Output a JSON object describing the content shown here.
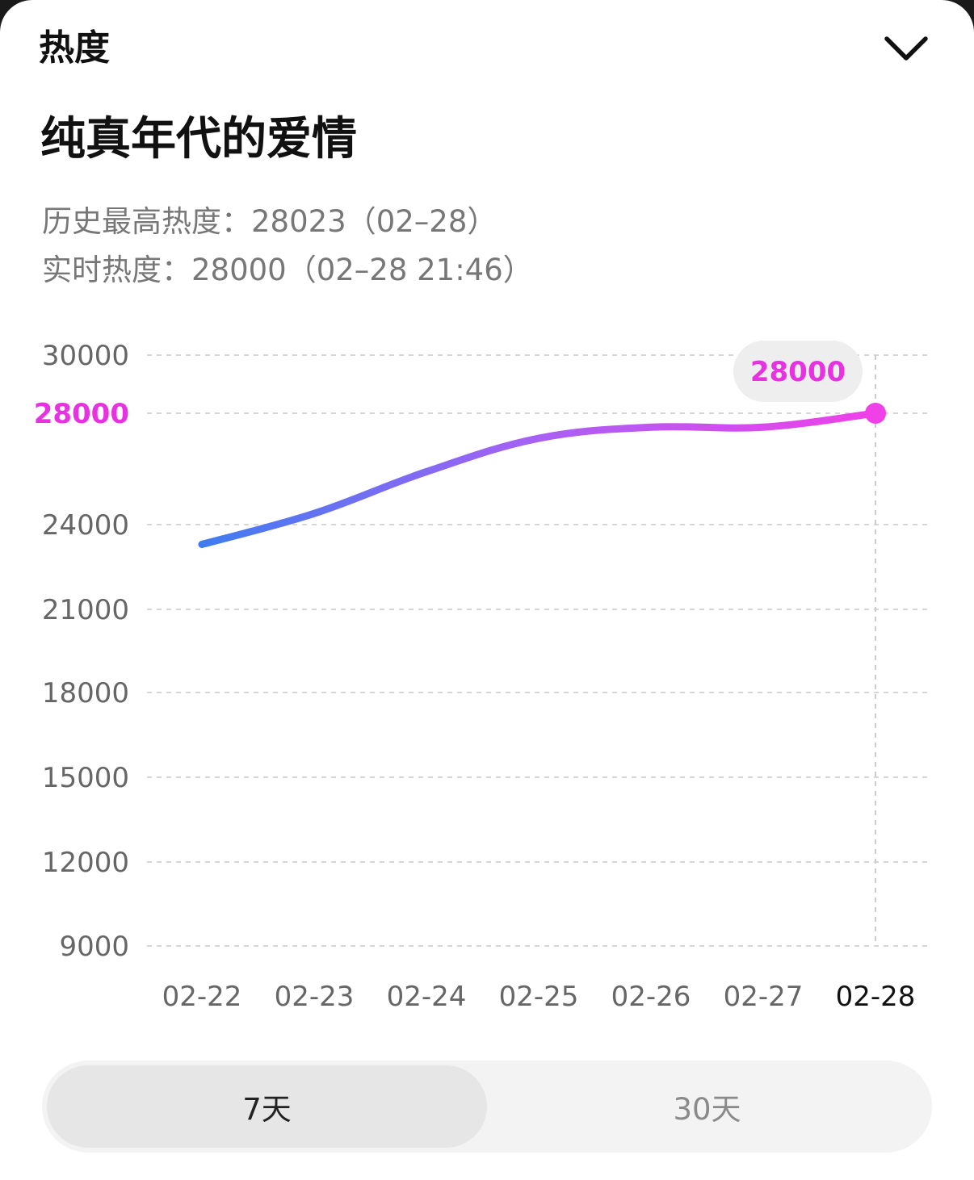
{
  "header": {
    "title": "热度",
    "collapse_icon": "chevron-down-icon"
  },
  "page_title": "纯真年代的爱情",
  "stats": {
    "peak_line": "历史最高热度：28023（02–28）",
    "realtime_line": "实时热度：28000（02–28 21:46）"
  },
  "chart_data": {
    "type": "line",
    "x": [
      "02-22",
      "02-23",
      "02-24",
      "02-25",
      "02-26",
      "02-27",
      "02-28"
    ],
    "series": [
      {
        "values": [
          23300,
          24400,
          25900,
          27100,
          27500,
          27500,
          28000
        ]
      }
    ],
    "y_ticks": [
      9000,
      12000,
      15000,
      18000,
      21000,
      24000,
      28000,
      30000
    ],
    "highlighted_y_tick": 28000,
    "ylim": [
      9000,
      30000
    ],
    "grid": true,
    "active_x": "02-28",
    "tooltip_value": "28000",
    "line_gradient": [
      "#3f7cf0",
      "#a860f5",
      "#f040e8"
    ],
    "accent_color": "#e831e0"
  },
  "range_tabs": {
    "options": [
      "7天",
      "30天"
    ],
    "selected": "7天"
  }
}
